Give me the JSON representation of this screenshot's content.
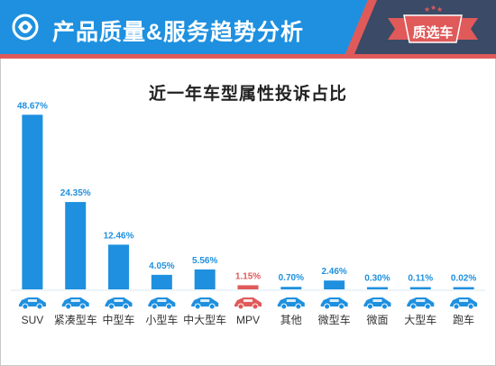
{
  "header": {
    "title": "产品质量&服务趋势分析",
    "brand": "质选车",
    "colors": {
      "header_blue": "#1E90DF",
      "accent_red": "#E05A5A",
      "brand_dark": "#3B4A66"
    }
  },
  "chart_data": {
    "type": "bar",
    "title": "近一年车型属性投诉占比",
    "categories": [
      "SUV",
      "紧凑型车",
      "中型车",
      "小型车",
      "中大型车",
      "MPV",
      "其他",
      "微型车",
      "微面",
      "大型车",
      "跑车"
    ],
    "values": [
      48.67,
      24.35,
      12.46,
      4.05,
      5.56,
      1.15,
      0.7,
      2.46,
      0.3,
      0.11,
      0.02
    ],
    "value_labels": [
      "48.67%",
      "24.35%",
      "12.46%",
      "4.05%",
      "5.56%",
      "1.15%",
      "0.70%",
      "2.46%",
      "0.30%",
      "0.11%",
      "0.02%"
    ],
    "unit": "%",
    "ylim": [
      0,
      50
    ],
    "grid": false,
    "colors": [
      "#1E90DF",
      "#1E90DF",
      "#1E90DF",
      "#1E90DF",
      "#1E90DF",
      "#E05A5A",
      "#1E90DF",
      "#1E90DF",
      "#1E90DF",
      "#1E90DF",
      "#1E90DF"
    ],
    "icons": [
      "suv-car-icon",
      "compact-car-icon",
      "midsize-car-icon",
      "small-car-icon",
      "large-car-icon",
      "mpv-icon",
      "pickup-icon",
      "micro-car-icon",
      "minivan-icon",
      "full-size-car-icon",
      "sports-car-icon"
    ]
  }
}
